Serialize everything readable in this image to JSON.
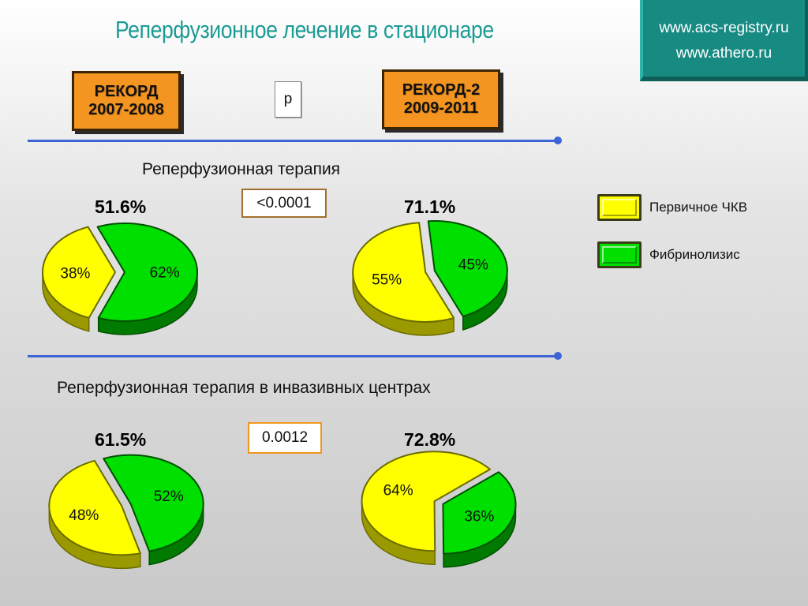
{
  "header": {
    "title": "Реперфузионное лечение в стационаре",
    "urls": [
      "www.acs-registry.ru",
      "www.athero.ru"
    ]
  },
  "registries": {
    "left": {
      "name": "РЕКОРД",
      "years": "2007-2008"
    },
    "right": {
      "name": "РЕКОРД-2",
      "years": "2009-2011"
    }
  },
  "p_label": "p",
  "colors": {
    "pci": "#ffff00",
    "fibrinolysis": "#00e000",
    "accent": "#1c9b94",
    "badge": "#f39520"
  },
  "sections": [
    {
      "title": "Реперфузионная терапия",
      "p_value": "<0.0001"
    },
    {
      "title": "Реперфузионная терапия в инвазивных центрах",
      "p_value": "0.0012"
    }
  ],
  "legend": [
    {
      "label": "Первичное ЧКВ",
      "color": "#ffff00"
    },
    {
      "label": "Фибринолизис",
      "color": "#00e000"
    }
  ],
  "chart_data": [
    {
      "type": "pie",
      "title": "51.6%",
      "labels": [
        "Первичное ЧКВ",
        "Фибринолизис"
      ],
      "values": [
        38,
        62
      ],
      "value_labels": [
        "38%",
        "62%"
      ]
    },
    {
      "type": "pie",
      "title": "71.1%",
      "labels": [
        "Первичное ЧКВ",
        "Фибринолизис"
      ],
      "values": [
        55,
        45
      ],
      "value_labels": [
        "55%",
        "45%"
      ]
    },
    {
      "type": "pie",
      "title": "61.5%",
      "labels": [
        "Первичное ЧКВ",
        "Фибринолизис"
      ],
      "values": [
        48,
        52
      ],
      "value_labels": [
        "48%",
        "52%"
      ]
    },
    {
      "type": "pie",
      "title": "72.8%",
      "labels": [
        "Первичное ЧКВ",
        "Фибринолизис"
      ],
      "values": [
        64,
        36
      ],
      "value_labels": [
        "64%",
        "36%"
      ]
    }
  ]
}
